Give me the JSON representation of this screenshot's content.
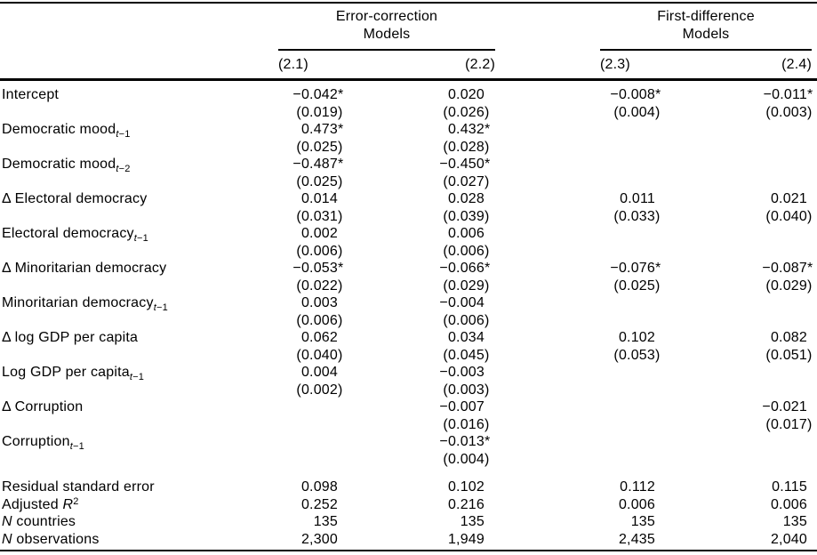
{
  "table": {
    "colors": {
      "text": "#000000",
      "background": "#ffffff",
      "rule": "#000000"
    },
    "groups": [
      {
        "lines": [
          "Error-correction",
          "Models"
        ],
        "models": [
          "(2.1)",
          "(2.2)"
        ]
      },
      {
        "lines": [
          "First-difference",
          "Models"
        ],
        "models": [
          "(2.3)",
          "(2.4)"
        ]
      }
    ],
    "rows": [
      {
        "label": [
          {
            "t": "Intercept"
          }
        ],
        "est": [
          "−0.042*",
          "0.020",
          "−0.008*",
          "−0.011*"
        ],
        "se": [
          "(0.019)",
          "(0.026)",
          "(0.004)",
          "(0.003)"
        ]
      },
      {
        "label": [
          {
            "t": "Democratic mood"
          },
          {
            "t": "t",
            "s": "isub"
          },
          {
            "t": "−1",
            "s": "sub"
          }
        ],
        "est": [
          "0.473*",
          "0.432*",
          "",
          ""
        ],
        "se": [
          "(0.025)",
          "(0.028)",
          "",
          ""
        ]
      },
      {
        "label": [
          {
            "t": "Democratic mood"
          },
          {
            "t": "t",
            "s": "isub"
          },
          {
            "t": "−2",
            "s": "sub"
          }
        ],
        "est": [
          "−0.487*",
          "−0.450*",
          "",
          ""
        ],
        "se": [
          "(0.025)",
          "(0.027)",
          "",
          ""
        ]
      },
      {
        "label": [
          {
            "t": "Δ Electoral democracy"
          }
        ],
        "est": [
          "0.014",
          "0.028",
          "0.011",
          "0.021"
        ],
        "se": [
          "(0.031)",
          "(0.039)",
          "(0.033)",
          "(0.040)"
        ]
      },
      {
        "label": [
          {
            "t": "Electoral democracy"
          },
          {
            "t": "t",
            "s": "isub"
          },
          {
            "t": "−1",
            "s": "sub"
          }
        ],
        "est": [
          "0.002",
          "0.006",
          "",
          ""
        ],
        "se": [
          "(0.006)",
          "(0.006)",
          "",
          ""
        ]
      },
      {
        "label": [
          {
            "t": "Δ Minoritarian democracy"
          }
        ],
        "est": [
          "−0.053*",
          "−0.066*",
          "−0.076*",
          "−0.087*"
        ],
        "se": [
          "(0.022)",
          "(0.029)",
          "(0.025)",
          "(0.029)"
        ]
      },
      {
        "label": [
          {
            "t": "Minoritarian democracy"
          },
          {
            "t": "t",
            "s": "isub"
          },
          {
            "t": "−1",
            "s": "sub"
          }
        ],
        "est": [
          "0.003",
          "−0.004",
          "",
          ""
        ],
        "se": [
          "(0.006)",
          "(0.006)",
          "",
          ""
        ]
      },
      {
        "label": [
          {
            "t": "Δ log GDP per capita"
          }
        ],
        "est": [
          "0.062",
          "0.034",
          "0.102",
          "0.082"
        ],
        "se": [
          "(0.040)",
          "(0.045)",
          "(0.053)",
          "(0.051)"
        ]
      },
      {
        "label": [
          {
            "t": "Log GDP per capita"
          },
          {
            "t": "t",
            "s": "isub"
          },
          {
            "t": "−1",
            "s": "sub"
          }
        ],
        "est": [
          "0.004",
          "−0.003",
          "",
          ""
        ],
        "se": [
          "(0.002)",
          "(0.003)",
          "",
          ""
        ]
      },
      {
        "label": [
          {
            "t": "Δ Corruption"
          }
        ],
        "est": [
          "",
          "−0.007",
          "",
          "−0.021"
        ],
        "se": [
          "",
          "(0.016)",
          "",
          "(0.017)"
        ]
      },
      {
        "label": [
          {
            "t": "Corruption"
          },
          {
            "t": "t",
            "s": "isub"
          },
          {
            "t": "−1",
            "s": "sub"
          }
        ],
        "est": [
          "",
          "−0.013*",
          "",
          ""
        ],
        "se": [
          "",
          "(0.004)",
          "",
          ""
        ]
      }
    ],
    "stats": [
      {
        "label": [
          {
            "t": "Residual standard error"
          }
        ],
        "values": [
          "0.098",
          "0.102",
          "0.112",
          "0.115"
        ]
      },
      {
        "label": [
          {
            "t": "Adjusted "
          },
          {
            "t": "R",
            "s": "i"
          },
          {
            "t": "2",
            "s": "sup"
          }
        ],
        "values": [
          "0.252",
          "0.216",
          "0.006",
          "0.006"
        ]
      },
      {
        "label": [
          {
            "t": "N",
            "s": "i"
          },
          {
            "t": " countries"
          }
        ],
        "values": [
          "135",
          "135",
          "135",
          "135"
        ]
      },
      {
        "label": [
          {
            "t": "N",
            "s": "i"
          },
          {
            "t": " observations"
          }
        ],
        "values": [
          "2,300",
          "1,949",
          "2,435",
          "2,040"
        ]
      }
    ]
  }
}
